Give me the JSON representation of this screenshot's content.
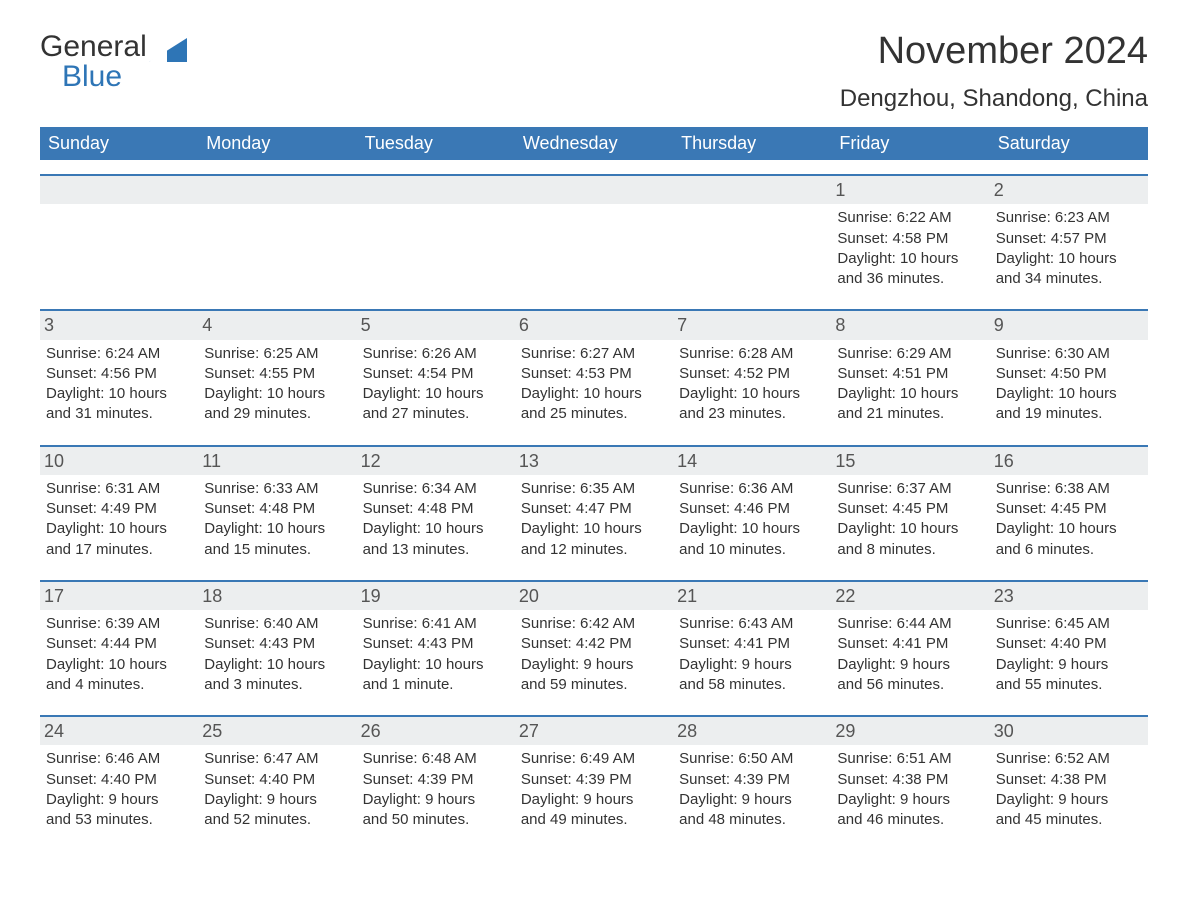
{
  "logo": {
    "word1": "General",
    "word2": "Blue",
    "shape_color": "#2e75b6"
  },
  "header": {
    "title": "November 2024",
    "location": "Dengzhou, Shandong, China"
  },
  "calendar": {
    "header_bg": "#3a78b5",
    "header_fg": "#ffffff",
    "daynum_bg": "#eceeef",
    "accent_border": "#3a78b5",
    "text_color": "#333333",
    "day_names": [
      "Sunday",
      "Monday",
      "Tuesday",
      "Wednesday",
      "Thursday",
      "Friday",
      "Saturday"
    ],
    "weeks": [
      [
        null,
        null,
        null,
        null,
        null,
        {
          "n": "1",
          "sunrise": "Sunrise: 6:22 AM",
          "sunset": "Sunset: 4:58 PM",
          "dl1": "Daylight: 10 hours",
          "dl2": "and 36 minutes."
        },
        {
          "n": "2",
          "sunrise": "Sunrise: 6:23 AM",
          "sunset": "Sunset: 4:57 PM",
          "dl1": "Daylight: 10 hours",
          "dl2": "and 34 minutes."
        }
      ],
      [
        {
          "n": "3",
          "sunrise": "Sunrise: 6:24 AM",
          "sunset": "Sunset: 4:56 PM",
          "dl1": "Daylight: 10 hours",
          "dl2": "and 31 minutes."
        },
        {
          "n": "4",
          "sunrise": "Sunrise: 6:25 AM",
          "sunset": "Sunset: 4:55 PM",
          "dl1": "Daylight: 10 hours",
          "dl2": "and 29 minutes."
        },
        {
          "n": "5",
          "sunrise": "Sunrise: 6:26 AM",
          "sunset": "Sunset: 4:54 PM",
          "dl1": "Daylight: 10 hours",
          "dl2": "and 27 minutes."
        },
        {
          "n": "6",
          "sunrise": "Sunrise: 6:27 AM",
          "sunset": "Sunset: 4:53 PM",
          "dl1": "Daylight: 10 hours",
          "dl2": "and 25 minutes."
        },
        {
          "n": "7",
          "sunrise": "Sunrise: 6:28 AM",
          "sunset": "Sunset: 4:52 PM",
          "dl1": "Daylight: 10 hours",
          "dl2": "and 23 minutes."
        },
        {
          "n": "8",
          "sunrise": "Sunrise: 6:29 AM",
          "sunset": "Sunset: 4:51 PM",
          "dl1": "Daylight: 10 hours",
          "dl2": "and 21 minutes."
        },
        {
          "n": "9",
          "sunrise": "Sunrise: 6:30 AM",
          "sunset": "Sunset: 4:50 PM",
          "dl1": "Daylight: 10 hours",
          "dl2": "and 19 minutes."
        }
      ],
      [
        {
          "n": "10",
          "sunrise": "Sunrise: 6:31 AM",
          "sunset": "Sunset: 4:49 PM",
          "dl1": "Daylight: 10 hours",
          "dl2": "and 17 minutes."
        },
        {
          "n": "11",
          "sunrise": "Sunrise: 6:33 AM",
          "sunset": "Sunset: 4:48 PM",
          "dl1": "Daylight: 10 hours",
          "dl2": "and 15 minutes."
        },
        {
          "n": "12",
          "sunrise": "Sunrise: 6:34 AM",
          "sunset": "Sunset: 4:48 PM",
          "dl1": "Daylight: 10 hours",
          "dl2": "and 13 minutes."
        },
        {
          "n": "13",
          "sunrise": "Sunrise: 6:35 AM",
          "sunset": "Sunset: 4:47 PM",
          "dl1": "Daylight: 10 hours",
          "dl2": "and 12 minutes."
        },
        {
          "n": "14",
          "sunrise": "Sunrise: 6:36 AM",
          "sunset": "Sunset: 4:46 PM",
          "dl1": "Daylight: 10 hours",
          "dl2": "and 10 minutes."
        },
        {
          "n": "15",
          "sunrise": "Sunrise: 6:37 AM",
          "sunset": "Sunset: 4:45 PM",
          "dl1": "Daylight: 10 hours",
          "dl2": "and 8 minutes."
        },
        {
          "n": "16",
          "sunrise": "Sunrise: 6:38 AM",
          "sunset": "Sunset: 4:45 PM",
          "dl1": "Daylight: 10 hours",
          "dl2": "and 6 minutes."
        }
      ],
      [
        {
          "n": "17",
          "sunrise": "Sunrise: 6:39 AM",
          "sunset": "Sunset: 4:44 PM",
          "dl1": "Daylight: 10 hours",
          "dl2": "and 4 minutes."
        },
        {
          "n": "18",
          "sunrise": "Sunrise: 6:40 AM",
          "sunset": "Sunset: 4:43 PM",
          "dl1": "Daylight: 10 hours",
          "dl2": "and 3 minutes."
        },
        {
          "n": "19",
          "sunrise": "Sunrise: 6:41 AM",
          "sunset": "Sunset: 4:43 PM",
          "dl1": "Daylight: 10 hours",
          "dl2": "and 1 minute."
        },
        {
          "n": "20",
          "sunrise": "Sunrise: 6:42 AM",
          "sunset": "Sunset: 4:42 PM",
          "dl1": "Daylight: 9 hours",
          "dl2": "and 59 minutes."
        },
        {
          "n": "21",
          "sunrise": "Sunrise: 6:43 AM",
          "sunset": "Sunset: 4:41 PM",
          "dl1": "Daylight: 9 hours",
          "dl2": "and 58 minutes."
        },
        {
          "n": "22",
          "sunrise": "Sunrise: 6:44 AM",
          "sunset": "Sunset: 4:41 PM",
          "dl1": "Daylight: 9 hours",
          "dl2": "and 56 minutes."
        },
        {
          "n": "23",
          "sunrise": "Sunrise: 6:45 AM",
          "sunset": "Sunset: 4:40 PM",
          "dl1": "Daylight: 9 hours",
          "dl2": "and 55 minutes."
        }
      ],
      [
        {
          "n": "24",
          "sunrise": "Sunrise: 6:46 AM",
          "sunset": "Sunset: 4:40 PM",
          "dl1": "Daylight: 9 hours",
          "dl2": "and 53 minutes."
        },
        {
          "n": "25",
          "sunrise": "Sunrise: 6:47 AM",
          "sunset": "Sunset: 4:40 PM",
          "dl1": "Daylight: 9 hours",
          "dl2": "and 52 minutes."
        },
        {
          "n": "26",
          "sunrise": "Sunrise: 6:48 AM",
          "sunset": "Sunset: 4:39 PM",
          "dl1": "Daylight: 9 hours",
          "dl2": "and 50 minutes."
        },
        {
          "n": "27",
          "sunrise": "Sunrise: 6:49 AM",
          "sunset": "Sunset: 4:39 PM",
          "dl1": "Daylight: 9 hours",
          "dl2": "and 49 minutes."
        },
        {
          "n": "28",
          "sunrise": "Sunrise: 6:50 AM",
          "sunset": "Sunset: 4:39 PM",
          "dl1": "Daylight: 9 hours",
          "dl2": "and 48 minutes."
        },
        {
          "n": "29",
          "sunrise": "Sunrise: 6:51 AM",
          "sunset": "Sunset: 4:38 PM",
          "dl1": "Daylight: 9 hours",
          "dl2": "and 46 minutes."
        },
        {
          "n": "30",
          "sunrise": "Sunrise: 6:52 AM",
          "sunset": "Sunset: 4:38 PM",
          "dl1": "Daylight: 9 hours",
          "dl2": "and 45 minutes."
        }
      ]
    ]
  }
}
